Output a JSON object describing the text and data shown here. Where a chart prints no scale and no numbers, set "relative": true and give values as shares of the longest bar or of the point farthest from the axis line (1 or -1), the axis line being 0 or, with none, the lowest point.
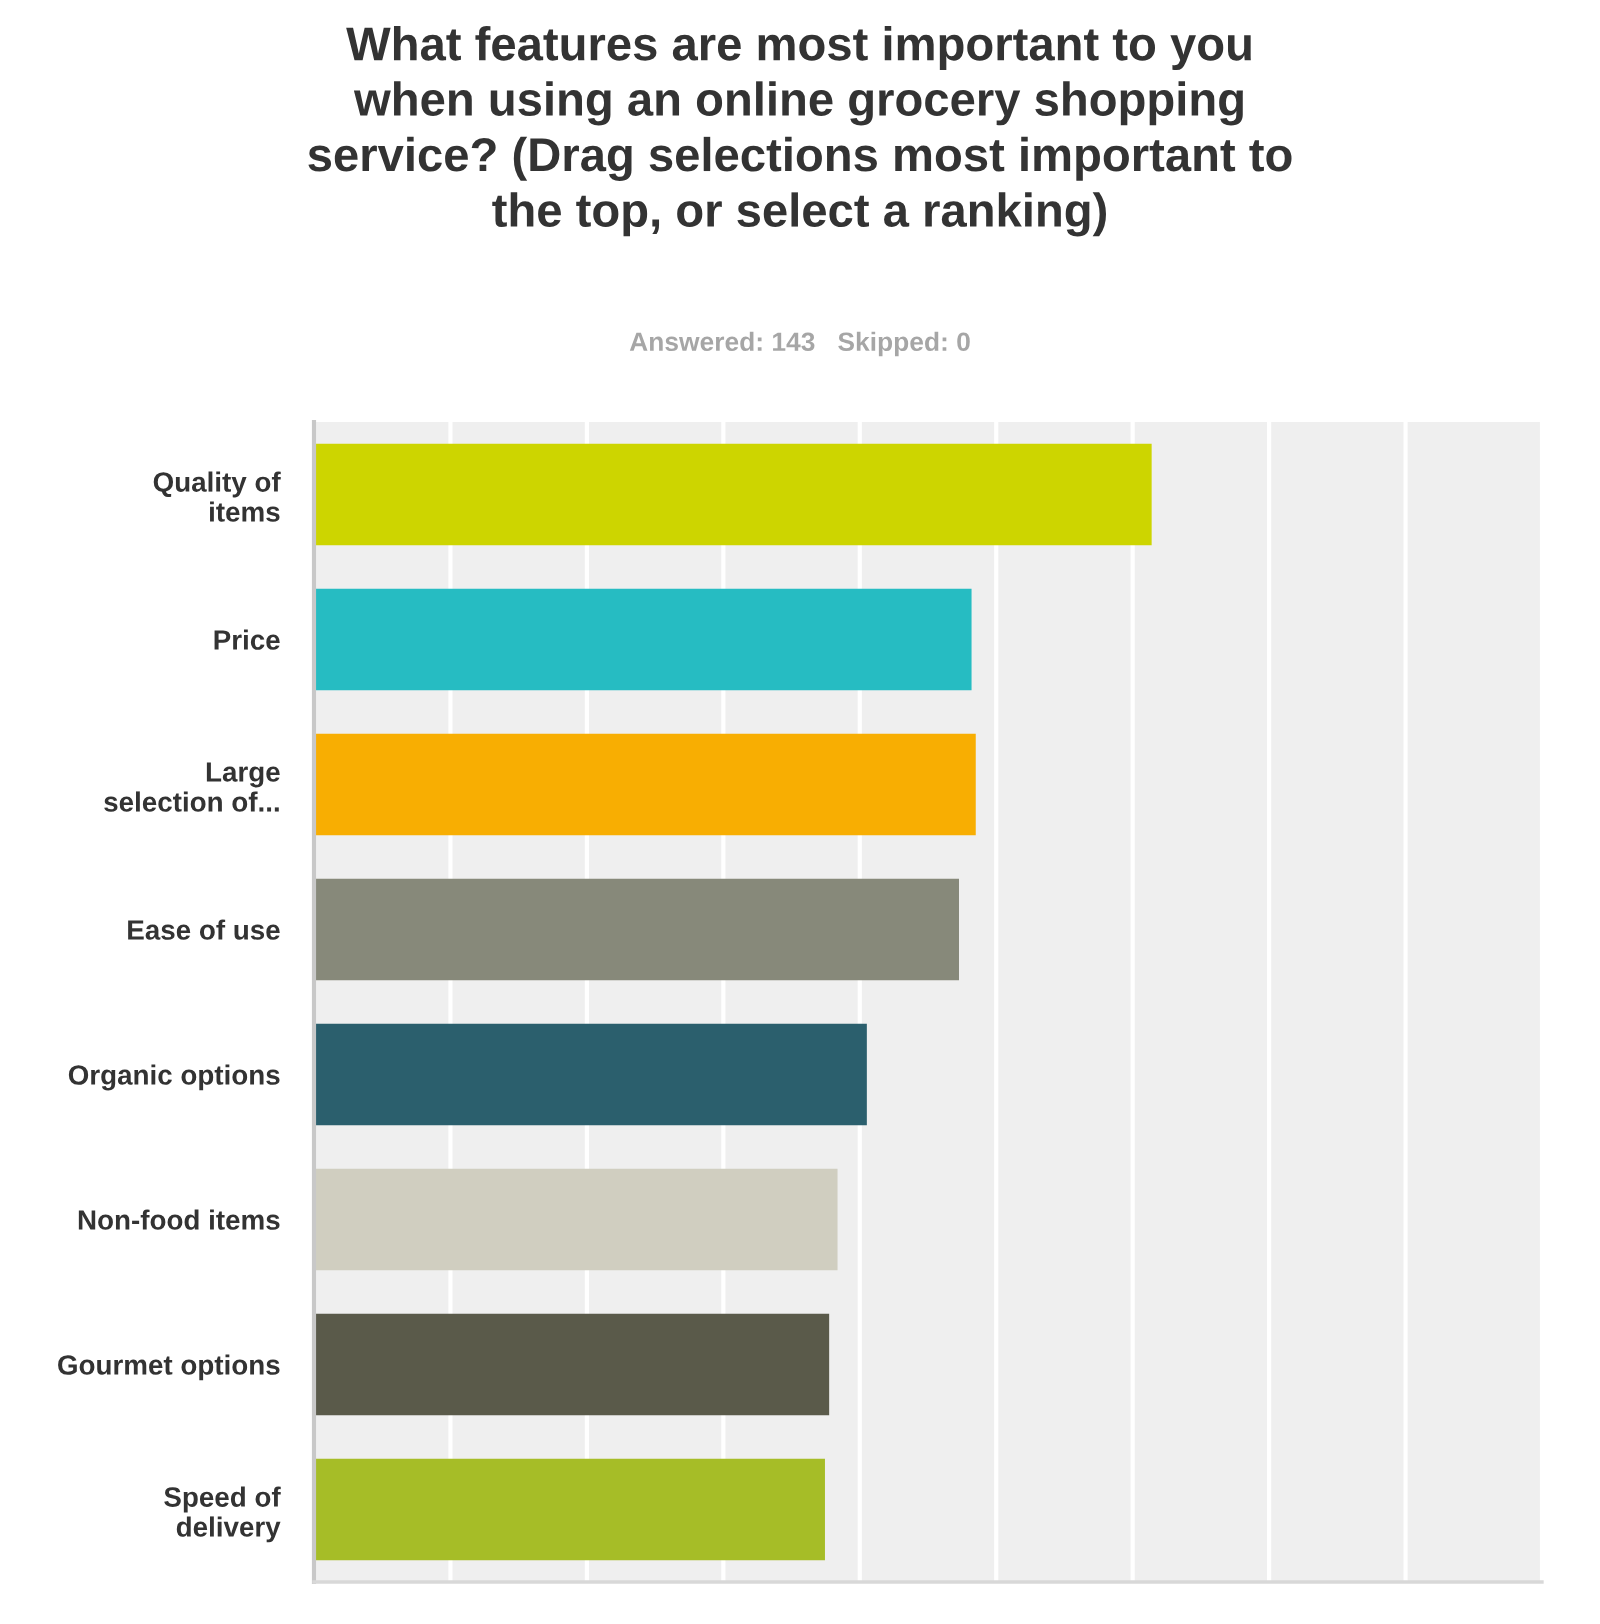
{
  "chart_data": {
    "type": "bar",
    "orientation": "horizontal",
    "relative": true,
    "title": "What features are most important to you\nwhen using an online grocery shopping\nservice? (Drag selections most important to\nthe top, or select a ranking)",
    "subtitle": "Answered: 143   Skipped: 0",
    "categories": [
      "Quality of\nitems",
      "Price",
      "Large\nselection of...",
      "Ease of use",
      "Organic options",
      "Non-food items",
      "Gourmet options",
      "Speed of\ndelivery"
    ],
    "values": [
      1,
      0.785,
      0.79,
      0.77,
      0.66,
      0.625,
      0.615,
      0.61
    ],
    "colors": [
      "#cdd500",
      "#26bcc2",
      "#f8ae02",
      "#87897a",
      "#2b5f6d",
      "#d0cec0",
      "#5a5a4a",
      "#a6bd27"
    ],
    "grid": "x"
  }
}
